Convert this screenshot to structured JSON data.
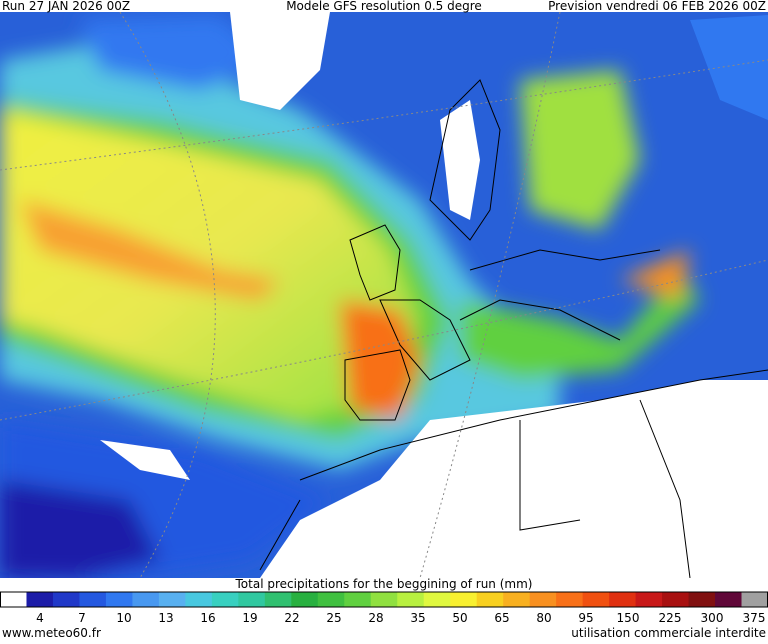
{
  "header": {
    "run": "Run 27 JAN 2026 00Z",
    "model": "Modele GFS resolution 0.5 degre",
    "forecast": "Prevision vendredi 06 FEB 2026 00Z"
  },
  "colorbar": {
    "title": "Total precipitations for the beggining of run (mm)",
    "labels": [
      "4",
      "7",
      "10",
      "13",
      "16",
      "19",
      "22",
      "25",
      "28",
      "35",
      "50",
      "65",
      "80",
      "95",
      "150",
      "225",
      "300",
      "375"
    ],
    "colors": [
      "#ffffff",
      "#1c1ca8",
      "#2038c8",
      "#2458e0",
      "#3078f0",
      "#4898f0",
      "#58b0f0",
      "#48c8e0",
      "#38d0c0",
      "#30c8a0",
      "#30c070",
      "#28b040",
      "#40c040",
      "#60d040",
      "#90e040",
      "#b8f040",
      "#e0f840",
      "#f8f030",
      "#f8d020",
      "#f8b020",
      "#f89020",
      "#f87018",
      "#f05010",
      "#e03010",
      "#c81818",
      "#a81010",
      "#801010",
      "#600838",
      "#a0a0a0"
    ]
  },
  "footer": {
    "site": "www.meteo60.fr",
    "notice": "utilisation commerciale interdite"
  }
}
